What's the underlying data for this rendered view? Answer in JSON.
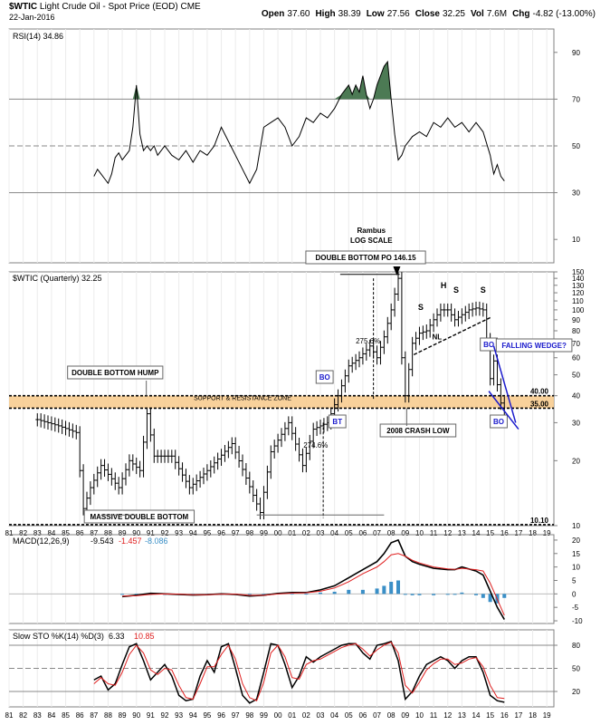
{
  "header": {
    "symbol": "$WTIC",
    "name": "Light Crude Oil - Spot Price (EOD)",
    "exchange": "CME",
    "date": "22-Jan-2016",
    "ohlc": [
      {
        "label": "Open",
        "value": "37.60"
      },
      {
        "label": "High",
        "value": "38.39"
      },
      {
        "label": "Low",
        "value": "27.56"
      },
      {
        "label": "Close",
        "value": "32.25"
      },
      {
        "label": "Vol",
        "value": "7.6M"
      },
      {
        "label": "Chg",
        "value": "-4.82 (-13.00%)"
      }
    ]
  },
  "colors": {
    "grid": "#c8c8c8",
    "frame": "#808080",
    "price": "#000000",
    "rsi_fill": "#4c7a54",
    "zone": "#f7c98a",
    "macd_signal": "#e02020",
    "macd_hist": "#3a8fc7",
    "wedge": "#1a1acc",
    "bo_label": "#1a1acc"
  },
  "chart_data": [
    {
      "type": "line",
      "panel": "rsi",
      "title": "RSI(14) 34.86",
      "yticks": [
        10,
        30,
        50,
        70,
        90
      ],
      "ylim": [
        0,
        100
      ],
      "levels": [
        70,
        50,
        30
      ],
      "x": [
        1987,
        1987.25,
        1987.5,
        1987.75,
        1988,
        1988.25,
        1988.5,
        1988.75,
        1989,
        1989.25,
        1989.5,
        1989.75,
        1990,
        1990.25,
        1990.5,
        1990.75,
        1991,
        1991.25,
        1991.5,
        1991.75,
        1992,
        1992.5,
        1993,
        1993.5,
        1994,
        1994.5,
        1995,
        1995.5,
        1996,
        1996.5,
        1997,
        1997.5,
        1998,
        1998.5,
        1999,
        1999.5,
        2000,
        2000.5,
        2001,
        2001.5,
        2002,
        2002.5,
        2003,
        2003.5,
        2004,
        2004.5,
        2005,
        2005.25,
        2005.5,
        2005.75,
        2006,
        2006.25,
        2006.5,
        2006.75,
        2007,
        2007.25,
        2007.5,
        2007.75,
        2008,
        2008.25,
        2008.5,
        2008.75,
        2009,
        2009.5,
        2010,
        2010.5,
        2011,
        2011.5,
        2012,
        2012.5,
        2013,
        2013.5,
        2014,
        2014.5,
        2015,
        2015.25,
        2015.5,
        2015.75,
        2016
      ],
      "values": [
        37,
        40,
        38,
        36,
        34,
        38,
        45,
        47,
        44,
        46,
        48,
        58,
        76,
        55,
        48,
        50,
        48,
        50,
        46,
        48,
        50,
        46,
        44,
        48,
        43,
        48,
        46,
        50,
        58,
        52,
        46,
        40,
        34,
        40,
        58,
        60,
        62,
        58,
        50,
        54,
        62,
        60,
        64,
        62,
        66,
        72,
        76,
        72,
        76,
        73,
        80,
        72,
        66,
        70,
        76,
        80,
        84,
        86,
        70,
        55,
        44,
        46,
        50,
        54,
        56,
        54,
        60,
        58,
        62,
        58,
        60,
        56,
        60,
        56,
        46,
        38,
        42,
        37,
        35
      ],
      "shaded_above": 70
    },
    {
      "type": "bar",
      "panel": "price",
      "title": "$WTIC (Quarterly) 32.25",
      "scale": "log",
      "ylim": [
        10,
        150
      ],
      "yticks": [
        10,
        20,
        30,
        40,
        50,
        60,
        70,
        80,
        90,
        100,
        110,
        120,
        130,
        140,
        150
      ],
      "xticks": [
        "81",
        "82",
        "83",
        "84",
        "85",
        "86",
        "87",
        "88",
        "89",
        "90",
        "91",
        "92",
        "93",
        "94",
        "95",
        "96",
        "97",
        "98",
        "99",
        "00",
        "01",
        "02",
        "03",
        "04",
        "05",
        "06",
        "07",
        "08",
        "09",
        "10",
        "11",
        "12",
        "13",
        "14",
        "15",
        "16",
        "17",
        "18",
        "19"
      ],
      "key_points": [
        {
          "x": 1983,
          "y": 31
        },
        {
          "x": 1984.5,
          "y": 29
        },
        {
          "x": 1985.75,
          "y": 27
        },
        {
          "x": 1986.25,
          "y": 12
        },
        {
          "x": 1986.75,
          "y": 15
        },
        {
          "x": 1987.5,
          "y": 19
        },
        {
          "x": 1988.75,
          "y": 15
        },
        {
          "x": 1989.5,
          "y": 20
        },
        {
          "x": 1990.25,
          "y": 18
        },
        {
          "x": 1990.75,
          "y": 33
        },
        {
          "x": 1991.25,
          "y": 21
        },
        {
          "x": 1992.5,
          "y": 21
        },
        {
          "x": 1993.75,
          "y": 15
        },
        {
          "x": 1995,
          "y": 18
        },
        {
          "x": 1996.75,
          "y": 24
        },
        {
          "x": 1998.75,
          "y": 11.5
        },
        {
          "x": 1999.5,
          "y": 22
        },
        {
          "x": 2000.75,
          "y": 30
        },
        {
          "x": 2001.75,
          "y": 19
        },
        {
          "x": 2002.5,
          "y": 28
        },
        {
          "x": 2003.5,
          "y": 30
        },
        {
          "x": 2004.25,
          "y": 40
        },
        {
          "x": 2005,
          "y": 55
        },
        {
          "x": 2005.75,
          "y": 60
        },
        {
          "x": 2006.5,
          "y": 68
        },
        {
          "x": 2007,
          "y": 60
        },
        {
          "x": 2007.5,
          "y": 75
        },
        {
          "x": 2008,
          "y": 100
        },
        {
          "x": 2008.5,
          "y": 140
        },
        {
          "x": 2008.75,
          "y": 60
        },
        {
          "x": 2009,
          "y": 40
        },
        {
          "x": 2009.5,
          "y": 70
        },
        {
          "x": 2010,
          "y": 78
        },
        {
          "x": 2010.5,
          "y": 80
        },
        {
          "x": 2011,
          "y": 90
        },
        {
          "x": 2011.5,
          "y": 100
        },
        {
          "x": 2012,
          "y": 100
        },
        {
          "x": 2012.5,
          "y": 90
        },
        {
          "x": 2013,
          "y": 95
        },
        {
          "x": 2013.5,
          "y": 100
        },
        {
          "x": 2014,
          "y": 102
        },
        {
          "x": 2014.5,
          "y": 100
        },
        {
          "x": 2014.75,
          "y": 73
        },
        {
          "x": 2015,
          "y": 48
        },
        {
          "x": 2015.25,
          "y": 58
        },
        {
          "x": 2015.5,
          "y": 45
        },
        {
          "x": 2015.75,
          "y": 37
        },
        {
          "x": 2016,
          "y": 32.25
        }
      ],
      "support_zone": [
        35,
        40
      ],
      "levels": [
        {
          "value": 40,
          "label": "40.00"
        },
        {
          "value": 35,
          "label": "35.00"
        },
        {
          "value": 10.1,
          "label": "10.10"
        }
      ],
      "annotations": [
        {
          "id": "rambus",
          "text": "Rambus"
        },
        {
          "id": "logscale",
          "text": "LOG SCALE"
        },
        {
          "id": "dbpo",
          "text": "DOUBLE BOTTOM PO 146.15"
        },
        {
          "id": "dbhump",
          "text": "DOUBLE BOTTOM HUMP"
        },
        {
          "id": "zone",
          "text": "SUPPORT & RESISTANCE ZONE"
        },
        {
          "id": "massive",
          "text": "MASSIVE DOUBLE BOTTOM"
        },
        {
          "id": "crash",
          "text": "2008 CRASH LOW"
        },
        {
          "id": "pct1",
          "text": "275.6%"
        },
        {
          "id": "pct2",
          "text": "274.6%"
        },
        {
          "id": "bo1",
          "text": "BO"
        },
        {
          "id": "bt",
          "text": "BT"
        },
        {
          "id": "bo2",
          "text": "BO"
        },
        {
          "id": "bo3",
          "text": "BO"
        },
        {
          "id": "wedge",
          "text": "FALLING WEDGE?"
        },
        {
          "id": "s1",
          "text": "S"
        },
        {
          "id": "h",
          "text": "H"
        },
        {
          "id": "s2",
          "text": "S"
        },
        {
          "id": "s3",
          "text": "S"
        },
        {
          "id": "nl",
          "text": "NL"
        }
      ]
    },
    {
      "type": "line",
      "panel": "macd",
      "title": "MACD(12,26,9)",
      "values_text": [
        "-9.543",
        "-1.457",
        "-8.086"
      ],
      "yticks": [
        20,
        15,
        10,
        5,
        0,
        -5,
        -10
      ],
      "ylim": [
        -11,
        22
      ],
      "x": [
        1989,
        1990,
        1991,
        1992,
        1993,
        1994,
        1995,
        1996,
        1997,
        1998,
        1999,
        2000,
        2001,
        2002,
        2003,
        2004,
        2005,
        2006,
        2007,
        2007.5,
        2008,
        2008.5,
        2009,
        2009.5,
        2010,
        2011,
        2012,
        2012.5,
        2013,
        2014,
        2014.5,
        2015,
        2015.5,
        2016
      ],
      "series": [
        {
          "name": "MACD",
          "values": [
            -1,
            -0.5,
            0.2,
            0,
            -0.2,
            -0.4,
            -0.3,
            0,
            -0.2,
            -0.8,
            -0.5,
            0.2,
            0.5,
            0.5,
            1.5,
            3,
            6,
            9,
            12,
            15,
            19,
            20,
            14,
            12,
            11,
            9.5,
            9,
            9,
            10,
            8.5,
            7,
            1,
            -5,
            -9.5
          ]
        },
        {
          "name": "Signal",
          "values": [
            -0.8,
            -0.7,
            -0.2,
            0,
            -0.1,
            -0.3,
            -0.3,
            -0.1,
            -0.1,
            -0.5,
            -0.5,
            0,
            0.3,
            0.4,
            1,
            2.2,
            4.5,
            7.5,
            10,
            12,
            14.5,
            15,
            14,
            12.5,
            11.5,
            10,
            9.3,
            9.1,
            9.5,
            9,
            8.5,
            4,
            -2,
            -8
          ]
        }
      ],
      "histogram": [
        0,
        0,
        0,
        0,
        0,
        0,
        0,
        0,
        0,
        0,
        0,
        0.2,
        0.2,
        0.1,
        0.5,
        0.8,
        1.5,
        1.5,
        2,
        3,
        4.5,
        5,
        0,
        -0.5,
        -0.5,
        -0.5,
        -0.3,
        -0.1,
        0.5,
        -0.5,
        -1.5,
        -3,
        -3.5,
        -1.5
      ]
    },
    {
      "type": "line",
      "panel": "sto",
      "title": "Slow STO %K(14) %D(3)",
      "values_text": [
        "6.33",
        "10.85"
      ],
      "yticks": [
        80,
        50,
        20
      ],
      "ylim": [
        0,
        100
      ],
      "x": [
        1987,
        1987.5,
        1988,
        1988.5,
        1989,
        1989.5,
        1990,
        1990.5,
        1991,
        1991.5,
        1992,
        1992.5,
        1993,
        1993.5,
        1994,
        1994.5,
        1995,
        1995.5,
        1996,
        1996.5,
        1997,
        1997.5,
        1998,
        1998.5,
        1999,
        1999.5,
        2000,
        2000.5,
        2001,
        2001.5,
        2002,
        2002.5,
        2003,
        2003.5,
        2004,
        2004.5,
        2005,
        2005.5,
        2006,
        2006.5,
        2007,
        2007.5,
        2008,
        2008.5,
        2009,
        2009.5,
        2010,
        2010.5,
        2011,
        2011.5,
        2012,
        2012.5,
        2013,
        2013.5,
        2014,
        2014.5,
        2015,
        2015.5,
        2016
      ],
      "series": [
        {
          "name": "%K",
          "values": [
            35,
            40,
            22,
            30,
            55,
            78,
            82,
            60,
            35,
            45,
            55,
            40,
            15,
            8,
            10,
            40,
            60,
            45,
            78,
            82,
            50,
            15,
            5,
            10,
            45,
            82,
            80,
            55,
            25,
            40,
            65,
            58,
            65,
            70,
            75,
            80,
            82,
            82,
            70,
            62,
            80,
            82,
            85,
            60,
            10,
            20,
            40,
            55,
            60,
            65,
            60,
            50,
            60,
            65,
            65,
            45,
            15,
            8,
            6
          ]
        },
        {
          "name": "%D",
          "values": [
            30,
            38,
            30,
            28,
            45,
            68,
            80,
            70,
            48,
            42,
            50,
            48,
            28,
            12,
            10,
            30,
            52,
            52,
            68,
            80,
            62,
            30,
            12,
            8,
            32,
            70,
            80,
            65,
            38,
            36,
            55,
            60,
            62,
            67,
            72,
            77,
            80,
            82,
            75,
            66,
            74,
            80,
            84,
            70,
            28,
            18,
            32,
            48,
            56,
            62,
            62,
            55,
            57,
            62,
            64,
            52,
            28,
            12,
            10.85
          ]
        }
      ]
    }
  ]
}
